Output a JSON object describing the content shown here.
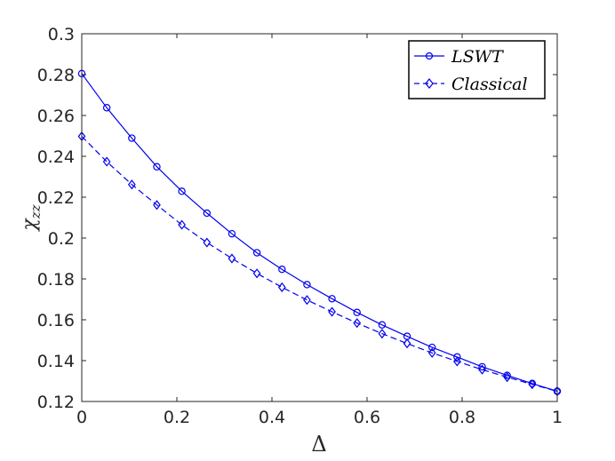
{
  "chart_data": {
    "type": "line",
    "title": "",
    "xlabel": "Δ",
    "ylabel_main": "χ",
    "ylabel_sub": "zz",
    "xlim": [
      0,
      1
    ],
    "ylim": [
      0.12,
      0.3
    ],
    "xticks": [
      0,
      0.2,
      0.4,
      0.6,
      0.8,
      1
    ],
    "xtick_labels": [
      "0",
      "0.2",
      "0.4",
      "0.6",
      "0.8",
      "1"
    ],
    "yticks": [
      0.12,
      0.14,
      0.16,
      0.18,
      0.2,
      0.22,
      0.24,
      0.26,
      0.28,
      0.3
    ],
    "ytick_labels": [
      "0.12",
      "0.14",
      "0.16",
      "0.18",
      "0.2",
      "0.22",
      "0.24",
      "0.26",
      "0.28",
      "0.3"
    ],
    "grid": false,
    "legend_position": "top-right",
    "line_color": "#0000ee",
    "x": [
      0,
      0.0526,
      0.1053,
      0.1579,
      0.2105,
      0.2632,
      0.3158,
      0.3684,
      0.4211,
      0.4737,
      0.5263,
      0.5789,
      0.6316,
      0.6842,
      0.7368,
      0.7895,
      0.8421,
      0.8947,
      0.9474,
      1.0
    ],
    "series": [
      {
        "name": "LSWT",
        "marker": "circle",
        "linestyle": "solid",
        "values": [
          0.2805,
          0.2638,
          0.2489,
          0.2349,
          0.2229,
          0.2122,
          0.2021,
          0.1928,
          0.1847,
          0.1772,
          0.1703,
          0.1636,
          0.1575,
          0.1519,
          0.1465,
          0.1418,
          0.137,
          0.1328,
          0.1288,
          0.125
        ]
      },
      {
        "name": "Classical",
        "marker": "diamond",
        "linestyle": "dashed",
        "values": [
          0.2498,
          0.2374,
          0.2262,
          0.2162,
          0.2065,
          0.1978,
          0.19,
          0.1827,
          0.1759,
          0.1697,
          0.1639,
          0.1584,
          0.1532,
          0.1484,
          0.1438,
          0.1396,
          0.1356,
          0.1319,
          0.1284,
          0.125
        ]
      }
    ]
  }
}
